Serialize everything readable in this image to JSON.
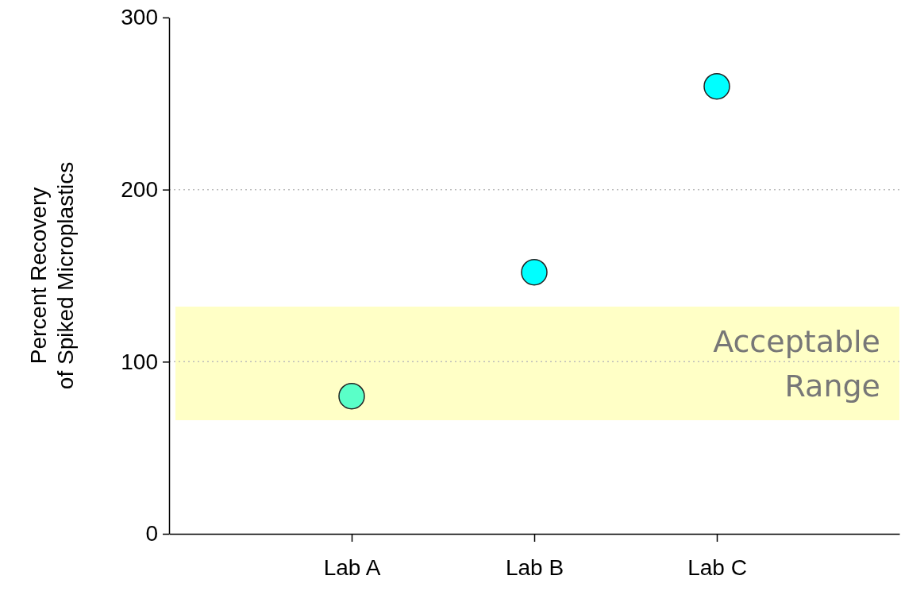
{
  "chart_data": {
    "type": "scatter",
    "ylabel": "Percent Recovery\nof Spiked Microplastics",
    "categories": [
      "Lab A",
      "Lab B",
      "Lab C"
    ],
    "values": [
      80,
      152,
      260
    ],
    "colors": [
      "#5affc8",
      "#00ffff",
      "#00ffff"
    ],
    "marker": "circle",
    "ylim": [
      0,
      300
    ],
    "yticks": [
      0,
      100,
      200,
      300
    ],
    "grid": "y",
    "bands": [
      {
        "axis": "y",
        "from": 66,
        "to": 132,
        "label": "Acceptable Range",
        "color": "#ffffc6"
      }
    ]
  }
}
